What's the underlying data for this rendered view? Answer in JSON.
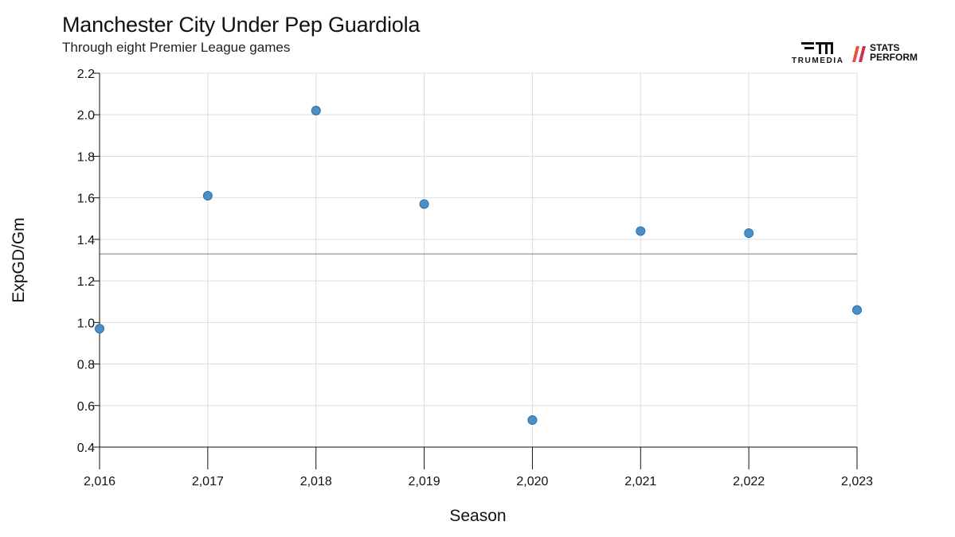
{
  "header": {
    "title": "Manchester City Under Pep Guardiola",
    "subtitle": "Through eight Premier League games"
  },
  "logos": {
    "trumedia": "TRUMEDIA",
    "stats_perform_line1": "STATS",
    "stats_perform_line2": "PERFORM"
  },
  "chart_data": {
    "type": "scatter",
    "xlabel": "Season",
    "ylabel": "ExpGD/Gm",
    "x": [
      2016,
      2017,
      2018,
      2019,
      2020,
      2021,
      2022,
      2023
    ],
    "y": [
      0.97,
      1.61,
      2.02,
      1.57,
      0.53,
      1.44,
      1.43,
      1.06
    ],
    "x_tick_labels": [
      "2,016",
      "2,017",
      "2,018",
      "2,019",
      "2,020",
      "2,021",
      "2,022",
      "2,023"
    ],
    "y_ticks": [
      0.4,
      0.6,
      0.8,
      1.0,
      1.2,
      1.4,
      1.6,
      1.8,
      2.0,
      2.2
    ],
    "y_tick_labels": [
      "0.4",
      "0.6",
      "0.8",
      "1.0",
      "1.2",
      "1.4",
      "1.6",
      "1.8",
      "2.0",
      "2.2"
    ],
    "xlim": [
      2016,
      2023
    ],
    "ylim": [
      0.4,
      2.2
    ],
    "reference_line_y": 1.33,
    "grid": true,
    "colors": {
      "point_fill": "#4a90c8",
      "point_stroke": "#2c6fa8",
      "grid": "#dddddd",
      "reference_line": "#888888",
      "axis": "#111111"
    }
  }
}
